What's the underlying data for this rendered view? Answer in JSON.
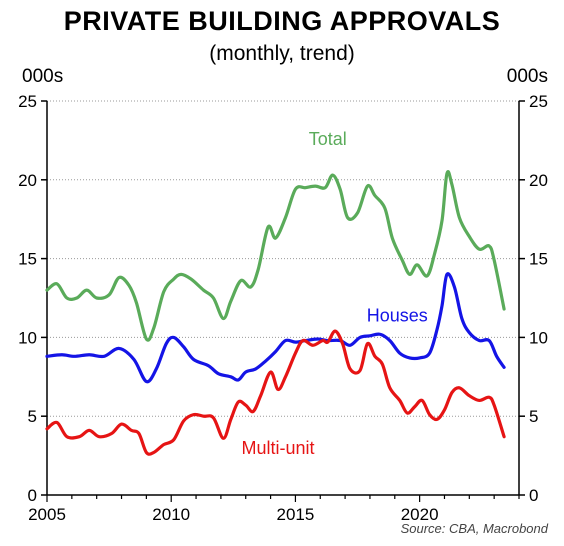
{
  "header": {
    "title": "PRIVATE BUILDING APPROVALS",
    "subtitle": "(monthly, trend)",
    "unit_left": "000s",
    "unit_right": "000s"
  },
  "source": "Source: CBA, Macrobond",
  "chart_data": {
    "type": "line",
    "xlim": [
      2005,
      2024
    ],
    "ylim": [
      0,
      25
    ],
    "x_ticks": [
      2005,
      2010,
      2015,
      2020
    ],
    "y_ticks": [
      0,
      5,
      10,
      15,
      20,
      25
    ],
    "grid": "horizontal dotted",
    "series": [
      {
        "name": "Total",
        "color": "#5aab5a",
        "label_at": [
          2016.3,
          22.2
        ],
        "points": [
          [
            2005,
            13.0
          ],
          [
            2005.4,
            13.4
          ],
          [
            2005.8,
            12.5
          ],
          [
            2006.2,
            12.5
          ],
          [
            2006.6,
            13.0
          ],
          [
            2007,
            12.5
          ],
          [
            2007.5,
            12.7
          ],
          [
            2007.9,
            13.8
          ],
          [
            2008.3,
            13.3
          ],
          [
            2008.6,
            12.2
          ],
          [
            2009.0,
            9.9
          ],
          [
            2009.3,
            10.6
          ],
          [
            2009.7,
            12.9
          ],
          [
            2010.1,
            13.7
          ],
          [
            2010.4,
            14.0
          ],
          [
            2010.8,
            13.7
          ],
          [
            2011.3,
            13.0
          ],
          [
            2011.7,
            12.5
          ],
          [
            2012.1,
            11.2
          ],
          [
            2012.4,
            12.3
          ],
          [
            2012.8,
            13.6
          ],
          [
            2013.2,
            13.2
          ],
          [
            2013.5,
            14.3
          ],
          [
            2013.9,
            17.0
          ],
          [
            2014.2,
            16.3
          ],
          [
            2014.6,
            17.6
          ],
          [
            2015.0,
            19.4
          ],
          [
            2015.4,
            19.5
          ],
          [
            2015.8,
            19.6
          ],
          [
            2016.2,
            19.5
          ],
          [
            2016.5,
            20.3
          ],
          [
            2016.8,
            19.4
          ],
          [
            2017.1,
            17.6
          ],
          [
            2017.5,
            17.9
          ],
          [
            2017.9,
            19.6
          ],
          [
            2018.2,
            19.0
          ],
          [
            2018.6,
            18.2
          ],
          [
            2018.9,
            16.3
          ],
          [
            2019.3,
            14.9
          ],
          [
            2019.6,
            14.0
          ],
          [
            2019.9,
            14.6
          ],
          [
            2020.3,
            13.9
          ],
          [
            2020.6,
            15.3
          ],
          [
            2020.9,
            17.4
          ],
          [
            2021.1,
            20.4
          ],
          [
            2021.3,
            19.7
          ],
          [
            2021.6,
            17.6
          ],
          [
            2022.0,
            16.4
          ],
          [
            2022.4,
            15.6
          ],
          [
            2022.8,
            15.8
          ],
          [
            2023.0,
            14.9
          ],
          [
            2023.4,
            11.8
          ]
        ]
      },
      {
        "name": "Houses",
        "color": "#1414e6",
        "label_at": [
          2019.1,
          11.0
        ],
        "points": [
          [
            2005,
            8.8
          ],
          [
            2005.6,
            8.9
          ],
          [
            2006.1,
            8.8
          ],
          [
            2006.7,
            8.9
          ],
          [
            2007.3,
            8.8
          ],
          [
            2007.9,
            9.3
          ],
          [
            2008.5,
            8.6
          ],
          [
            2009.0,
            7.2
          ],
          [
            2009.4,
            8.0
          ],
          [
            2009.8,
            9.6
          ],
          [
            2010.1,
            10.0
          ],
          [
            2010.5,
            9.4
          ],
          [
            2010.9,
            8.6
          ],
          [
            2011.5,
            8.2
          ],
          [
            2011.9,
            7.7
          ],
          [
            2012.4,
            7.5
          ],
          [
            2012.7,
            7.3
          ],
          [
            2013.0,
            7.8
          ],
          [
            2013.4,
            8.0
          ],
          [
            2013.8,
            8.5
          ],
          [
            2014.2,
            9.1
          ],
          [
            2014.6,
            9.8
          ],
          [
            2015.0,
            9.7
          ],
          [
            2015.4,
            9.8
          ],
          [
            2015.9,
            9.9
          ],
          [
            2016.3,
            9.8
          ],
          [
            2016.8,
            9.8
          ],
          [
            2017.2,
            9.5
          ],
          [
            2017.6,
            10.0
          ],
          [
            2018.0,
            10.1
          ],
          [
            2018.4,
            10.2
          ],
          [
            2018.8,
            9.8
          ],
          [
            2019.2,
            9.0
          ],
          [
            2019.6,
            8.7
          ],
          [
            2020.0,
            8.7
          ],
          [
            2020.4,
            9.0
          ],
          [
            2020.7,
            10.5
          ],
          [
            2020.9,
            12.0
          ],
          [
            2021.1,
            14.0
          ],
          [
            2021.4,
            13.2
          ],
          [
            2021.7,
            11.2
          ],
          [
            2022.0,
            10.3
          ],
          [
            2022.4,
            9.8
          ],
          [
            2022.8,
            9.8
          ],
          [
            2023.1,
            8.8
          ],
          [
            2023.4,
            8.1
          ]
        ]
      },
      {
        "name": "Multi-unit",
        "color": "#e61414",
        "label_at": [
          2014.3,
          2.6
        ],
        "points": [
          [
            2005,
            4.2
          ],
          [
            2005.4,
            4.6
          ],
          [
            2005.8,
            3.7
          ],
          [
            2006.3,
            3.7
          ],
          [
            2006.7,
            4.1
          ],
          [
            2007.1,
            3.7
          ],
          [
            2007.6,
            3.9
          ],
          [
            2008.0,
            4.5
          ],
          [
            2008.4,
            4.1
          ],
          [
            2008.7,
            3.9
          ],
          [
            2009.0,
            2.7
          ],
          [
            2009.3,
            2.7
          ],
          [
            2009.7,
            3.2
          ],
          [
            2010.1,
            3.5
          ],
          [
            2010.5,
            4.7
          ],
          [
            2010.9,
            5.1
          ],
          [
            2011.3,
            5.0
          ],
          [
            2011.7,
            4.9
          ],
          [
            2012.1,
            3.6
          ],
          [
            2012.4,
            4.8
          ],
          [
            2012.7,
            5.9
          ],
          [
            2013.0,
            5.7
          ],
          [
            2013.3,
            5.3
          ],
          [
            2013.6,
            6.3
          ],
          [
            2014.0,
            7.8
          ],
          [
            2014.3,
            6.7
          ],
          [
            2014.6,
            7.5
          ],
          [
            2015.0,
            9.0
          ],
          [
            2015.3,
            9.8
          ],
          [
            2015.7,
            9.5
          ],
          [
            2016.1,
            9.8
          ],
          [
            2016.3,
            9.7
          ],
          [
            2016.6,
            10.4
          ],
          [
            2016.9,
            9.6
          ],
          [
            2017.2,
            8.0
          ],
          [
            2017.6,
            7.9
          ],
          [
            2017.9,
            9.6
          ],
          [
            2018.2,
            8.8
          ],
          [
            2018.5,
            8.3
          ],
          [
            2018.8,
            6.8
          ],
          [
            2019.2,
            6.0
          ],
          [
            2019.5,
            5.2
          ],
          [
            2019.8,
            5.6
          ],
          [
            2020.1,
            6.0
          ],
          [
            2020.4,
            5.1
          ],
          [
            2020.7,
            4.8
          ],
          [
            2021.0,
            5.4
          ],
          [
            2021.3,
            6.5
          ],
          [
            2021.6,
            6.8
          ],
          [
            2022.0,
            6.3
          ],
          [
            2022.4,
            6.0
          ],
          [
            2022.8,
            6.2
          ],
          [
            2023.0,
            5.7
          ],
          [
            2023.4,
            3.7
          ]
        ]
      }
    ]
  }
}
